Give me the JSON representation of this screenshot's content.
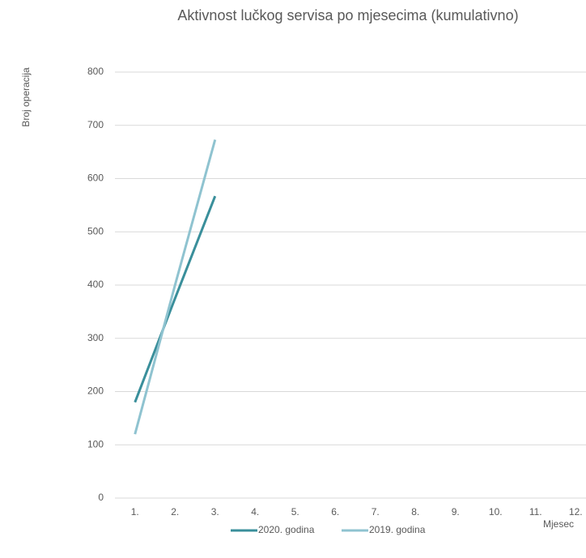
{
  "chart_data": {
    "type": "line",
    "title": "Aktivnost lučkog servisa po mjesecima (kumulativno)",
    "y_label": "Broj operacija",
    "x_label": "Mjesec",
    "categories": [
      "1.",
      "2.",
      "3.",
      "4.",
      "5.",
      "6.",
      "7.",
      "8.",
      "9.",
      "10.",
      "11.",
      "12."
    ],
    "series": [
      {
        "name": "2020. godina",
        "color": "#3a8f9b",
        "values": [
          180,
          375,
          567,
          null,
          null,
          null,
          null,
          null,
          null,
          null,
          null,
          null
        ]
      },
      {
        "name": "2019. godina",
        "color": "#8fc3d0",
        "values": [
          120,
          400,
          673,
          null,
          null,
          null,
          null,
          null,
          null,
          null,
          null,
          null
        ]
      }
    ],
    "ylim": [
      0,
      800
    ],
    "yticks": [
      0,
      100,
      200,
      300,
      400,
      500,
      600,
      700,
      800
    ],
    "grid": true,
    "legend": "bottom"
  }
}
